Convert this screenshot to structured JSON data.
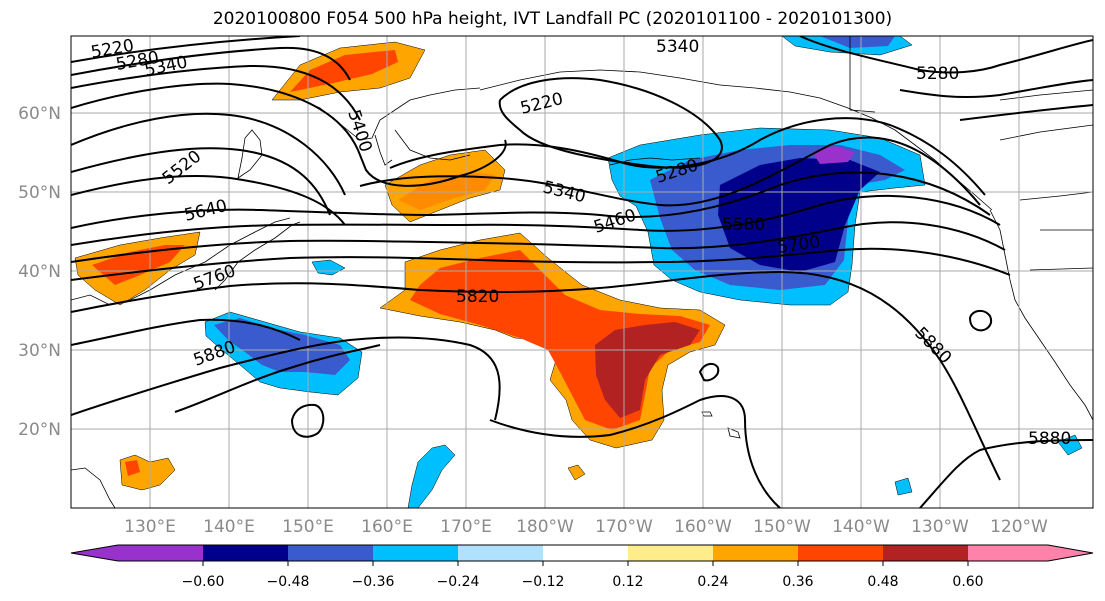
{
  "title": "2020100800 F054 500 hPa height, IVT Landfall PC (2020101100 - 2020101300)",
  "lat_labels": [
    "60°N",
    "50°N",
    "40°N",
    "30°N",
    "20°N"
  ],
  "lon_labels": [
    "130°E",
    "140°E",
    "150°E",
    "160°E",
    "170°E",
    "180°W",
    "170°W",
    "160°W",
    "150°W",
    "140°W",
    "130°W",
    "120°W"
  ],
  "contour_labels": [
    "5220",
    "5280",
    "5340",
    "5400",
    "5220",
    "5340",
    "5280",
    "5340",
    "5280",
    "5520",
    "5640",
    "5460",
    "5580",
    "5700",
    "5760",
    "5820",
    "5880",
    "5880",
    "5880"
  ],
  "colorbar": {
    "ticks": [
      "−0.60",
      "−0.48",
      "−0.36",
      "−0.24",
      "−0.12",
      "0.12",
      "0.24",
      "0.36",
      "0.48",
      "0.60"
    ],
    "colors": [
      "#9932cc",
      "#00008b",
      "#3a5bcd",
      "#00bfff",
      "#b0e2ff",
      "#ffffff",
      "#ffec8b",
      "#ffa500",
      "#ff4500",
      "#b22222",
      "#ff82ab"
    ]
  }
}
